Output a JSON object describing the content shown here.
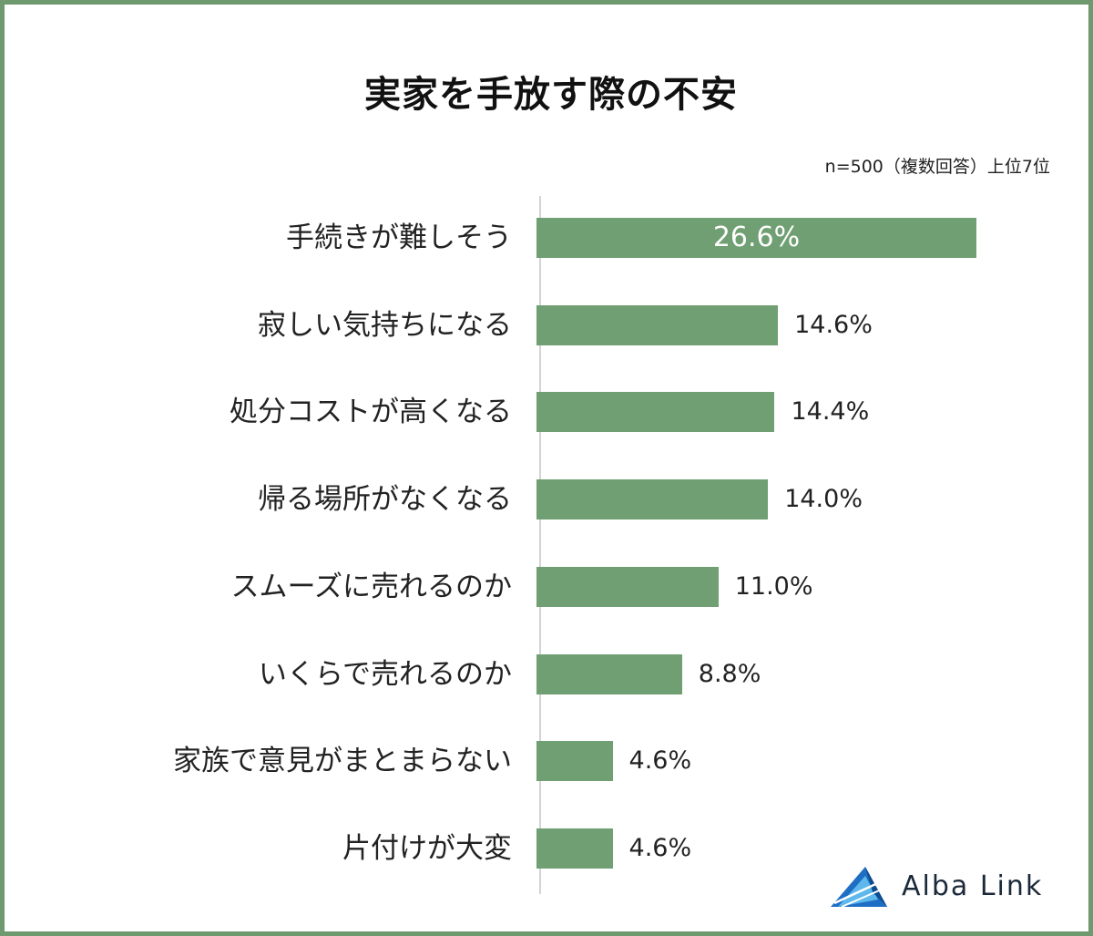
{
  "colors": {
    "bar": "#6f9f72",
    "frame": "#6f9a6f",
    "label_inside": "#ffffff"
  },
  "logo": {
    "text": "Alba Link",
    "icon": "alba-link-logo-icon"
  },
  "chart_data": {
    "type": "bar",
    "orientation": "horizontal",
    "title": "実家を手放す際の不安",
    "note": "n=500（複数回答）上位7位",
    "categories": [
      "手続きが難しそう",
      "寂しい気持ちになる",
      "処分コストが高くなる",
      "帰る場所がなくなる",
      "スムーズに売れるのか",
      "いくらで売れるのか",
      "家族で意見がまとまらない",
      "片付けが大変"
    ],
    "values": [
      26.6,
      14.6,
      14.4,
      14.0,
      11.0,
      8.8,
      4.6,
      4.6
    ],
    "value_labels": [
      "26.6%",
      "14.6%",
      "14.4%",
      "14.0%",
      "11.0%",
      "8.8%",
      "4.6%",
      "4.6%"
    ],
    "unit": "%",
    "grid": false,
    "legend": "none"
  }
}
